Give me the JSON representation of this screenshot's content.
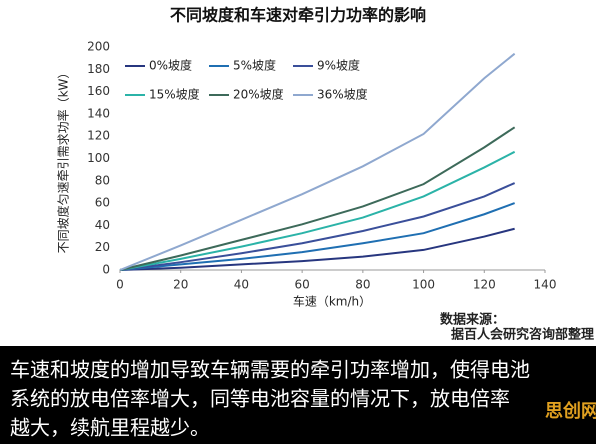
{
  "chart_data": {
    "type": "line",
    "title": "不同坡度和车速对牵引力功率的影响",
    "xlabel": "车速（km/h）",
    "ylabel": "不同坡度匀速牵引需求功率（kW）",
    "x": [
      0,
      20,
      40,
      60,
      80,
      100,
      120,
      130
    ],
    "series": [
      {
        "name": "0%坡度",
        "color": "#27367f",
        "values": [
          0,
          2,
          5,
          8,
          12,
          18,
          30,
          37
        ]
      },
      {
        "name": "5%坡度",
        "color": "#1f6fb2",
        "values": [
          0,
          5,
          10,
          16,
          24,
          33,
          50,
          60
        ]
      },
      {
        "name": "9%坡度",
        "color": "#3a4f9a",
        "values": [
          0,
          7,
          15,
          24,
          35,
          48,
          66,
          78
        ]
      },
      {
        "name": "15%坡度",
        "color": "#2bb3a8",
        "values": [
          0,
          10,
          21,
          33,
          47,
          66,
          92,
          106
        ]
      },
      {
        "name": "20%坡度",
        "color": "#3d6a5a",
        "values": [
          0,
          13,
          27,
          41,
          57,
          77,
          110,
          128
        ]
      },
      {
        "name": "36%坡度",
        "color": "#8fa8cf",
        "values": [
          0,
          22,
          45,
          68,
          93,
          122,
          172,
          194
        ]
      }
    ],
    "xlim": [
      0,
      140
    ],
    "xticks": [
      0,
      20,
      40,
      60,
      80,
      100,
      120,
      140
    ],
    "ylim": [
      0,
      200
    ],
    "yticks": [
      0,
      20,
      40,
      60,
      80,
      100,
      120,
      140,
      160,
      180,
      200
    ],
    "source_label": "数据来源：",
    "source": "据百人会研究咨询部整理",
    "caption": [
      "车速和坡度的增加导致车辆需要的牵引功率增加，使得电池",
      "系统的放电倍率增大，同等电池容量的情况下，放电倍率",
      "越大，续航里程越少。"
    ],
    "watermark": "思创网"
  }
}
